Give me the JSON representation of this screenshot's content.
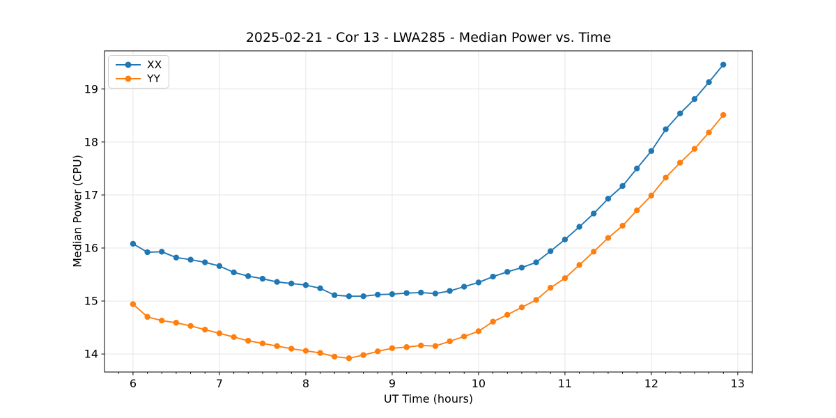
{
  "chart_data": {
    "type": "line",
    "title": "2025-02-21 - Cor 13 - LWA285 - Median Power vs. Time",
    "xlabel": "UT Time (hours)",
    "ylabel": "Median Power (CPU)",
    "xlim": [
      5.67,
      13.17
    ],
    "ylim": [
      13.66,
      19.72
    ],
    "xticks": [
      6,
      7,
      8,
      9,
      10,
      11,
      12,
      13
    ],
    "yticks": [
      14,
      15,
      16,
      17,
      18,
      19
    ],
    "x_minor_tick_step_hours": 0.16667,
    "grid": true,
    "legend_position": "upper-left",
    "grid_color": "#e4e4e4",
    "x": [
      6.0,
      6.167,
      6.333,
      6.5,
      6.667,
      6.833,
      7.0,
      7.167,
      7.333,
      7.5,
      7.667,
      7.833,
      8.0,
      8.167,
      8.333,
      8.5,
      8.667,
      8.833,
      9.0,
      9.167,
      9.333,
      9.5,
      9.667,
      9.833,
      10.0,
      10.167,
      10.333,
      10.5,
      10.667,
      10.833,
      11.0,
      11.167,
      11.333,
      11.5,
      11.667,
      11.833,
      12.0,
      12.167,
      12.333,
      12.5,
      12.667,
      12.833
    ],
    "series": [
      {
        "name": "XX",
        "color": "#1f77b4",
        "values": [
          16.08,
          15.92,
          15.93,
          15.82,
          15.78,
          15.73,
          15.66,
          15.54,
          15.47,
          15.42,
          15.36,
          15.33,
          15.3,
          15.24,
          15.11,
          15.09,
          15.09,
          15.12,
          15.13,
          15.15,
          15.16,
          15.14,
          15.19,
          15.27,
          15.35,
          15.46,
          15.55,
          15.63,
          15.73,
          15.94,
          16.16,
          16.4,
          16.65,
          16.93,
          17.17,
          17.5,
          17.83,
          18.24,
          18.54,
          18.81,
          19.13,
          19.46
        ]
      },
      {
        "name": "YY",
        "color": "#ff7f0e",
        "values": [
          14.94,
          14.7,
          14.63,
          14.59,
          14.53,
          14.46,
          14.39,
          14.32,
          14.25,
          14.2,
          14.15,
          14.1,
          14.06,
          14.02,
          13.95,
          13.92,
          13.98,
          14.05,
          14.11,
          14.13,
          14.16,
          14.15,
          14.24,
          14.33,
          14.43,
          14.61,
          14.74,
          14.88,
          15.02,
          15.25,
          15.43,
          15.68,
          15.93,
          16.19,
          16.42,
          16.71,
          16.99,
          17.33,
          17.61,
          17.87,
          18.18,
          18.51
        ]
      }
    ]
  }
}
